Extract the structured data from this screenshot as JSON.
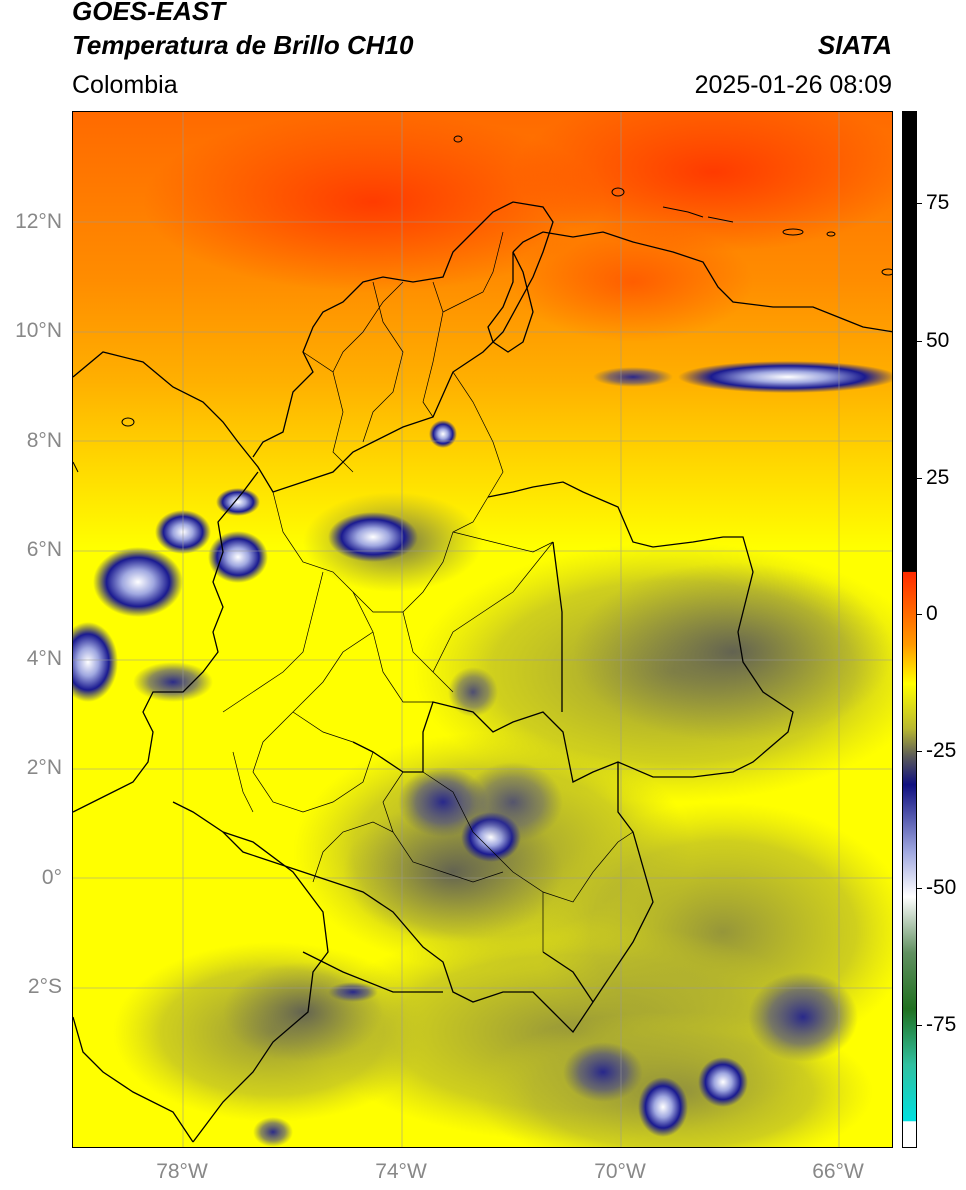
{
  "header": {
    "satellite": "GOES-EAST",
    "product": "Temperatura de Brillo CH10",
    "brand": "SIATA",
    "region": "Colombia",
    "datetime": "2025-01-26 08:09"
  },
  "map": {
    "lat_labels": [
      "12°N",
      "10°N",
      "8°N",
      "6°N",
      "4°N",
      "2°N",
      "0°",
      "2°S"
    ],
    "lon_labels": [
      "78°W",
      "74°W",
      "70°W",
      "66°W"
    ],
    "extent": {
      "lon_min": -80,
      "lon_max": -65,
      "lat_min": -5,
      "lat_max": 14
    }
  },
  "colorbar": {
    "range": [
      -95,
      90
    ],
    "tick_labels": [
      "75",
      "50",
      "25",
      "0",
      "-25",
      "-50",
      "-75"
    ],
    "tick_values": [
      75,
      50,
      25,
      0,
      -25,
      -50,
      -75
    ],
    "stops": [
      {
        "value": 90,
        "color": "#000000"
      },
      {
        "value": 8,
        "color": "#000000"
      },
      {
        "value": 7.9,
        "color": "#ff2a00"
      },
      {
        "value": -5,
        "color": "#ff9a00"
      },
      {
        "value": -12,
        "color": "#ffff00"
      },
      {
        "value": -20,
        "color": "#b8b830"
      },
      {
        "value": -25,
        "color": "#5a5a5a"
      },
      {
        "value": -30,
        "color": "#101080"
      },
      {
        "value": -42,
        "color": "#a0a8e0"
      },
      {
        "value": -50,
        "color": "#ffffff"
      },
      {
        "value": -60,
        "color": "#609060"
      },
      {
        "value": -70,
        "color": "#207020"
      },
      {
        "value": -80,
        "color": "#30c0a0"
      },
      {
        "value": -90,
        "color": "#00e0e0"
      },
      {
        "value": -90.1,
        "color": "#ffffff"
      },
      {
        "value": -95,
        "color": "#ffffff"
      }
    ]
  }
}
